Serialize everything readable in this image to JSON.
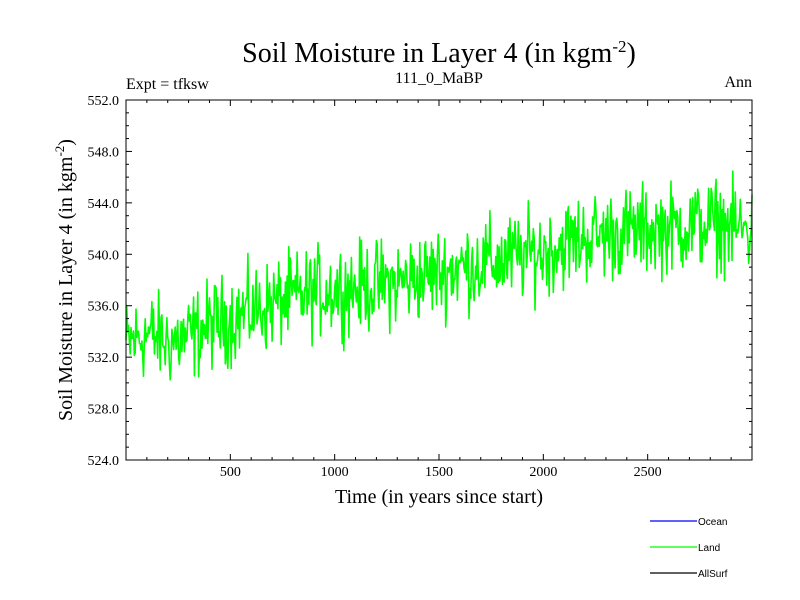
{
  "chart_data": {
    "type": "line",
    "title": "Soil Moisture in Layer 4 (in kgm",
    "title_sup": "-2",
    "title_end": ")",
    "left_label": "Expt = tfksw",
    "center_label": "111_0_MaBP",
    "right_label": "Ann",
    "xlabel": "Time (in years since start)",
    "ylabel": "Soil Moisture in Layer 4 (in kgm",
    "ylabel_sup": "-2",
    "ylabel_end": ")",
    "xlim": [
      0,
      3000
    ],
    "ylim": [
      524.0,
      552.0
    ],
    "x_ticks": [
      500,
      1000,
      1500,
      2000,
      2500
    ],
    "x_tick_labels": [
      "500",
      "1000",
      "1500",
      "2000",
      "2500"
    ],
    "y_ticks": [
      524,
      528,
      532,
      536,
      540,
      544,
      548,
      552
    ],
    "y_tick_labels": [
      "524.0",
      "528.0",
      "532.0",
      "536.0",
      "540.0",
      "544.0",
      "548.0",
      "552.0"
    ],
    "grid": false,
    "legend_position": "bottom-right",
    "series": [
      {
        "name": "Land",
        "color": "#00ff00",
        "x": [
          0,
          100,
          200,
          300,
          400,
          500,
          600,
          700,
          800,
          900,
          1000,
          1100,
          1200,
          1300,
          1400,
          1500,
          1600,
          1700,
          1800,
          1900,
          2000,
          2100,
          2200,
          2300,
          2400,
          2500,
          2600,
          2700,
          2800,
          2900,
          3000
        ],
        "y": [
          533.0,
          533.8,
          533.2,
          533.5,
          534.5,
          535.0,
          535.6,
          536.1,
          536.6,
          537.0,
          537.3,
          537.4,
          537.6,
          537.8,
          538.2,
          538.6,
          539.0,
          539.3,
          539.5,
          539.9,
          540.2,
          540.8,
          541.3,
          541.5,
          541.7,
          541.9,
          542.0,
          542.2,
          542.4,
          542.1,
          541.8
        ]
      }
    ],
    "legend": [
      {
        "label": "Ocean",
        "color": "#0000ff"
      },
      {
        "label": "Land",
        "color": "#00ff00"
      },
      {
        "label": "AllSurf",
        "color": "#000000"
      }
    ]
  }
}
